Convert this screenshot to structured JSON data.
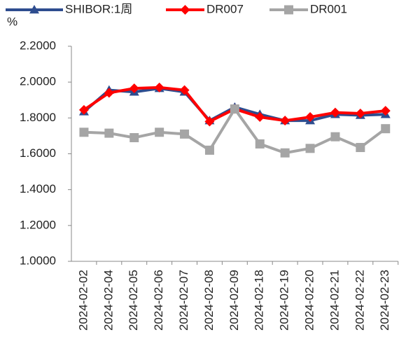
{
  "chart_data": {
    "type": "line",
    "y_label": "%",
    "categories": [
      "2024-02-02",
      "2024-02-04",
      "2024-02-05",
      "2024-02-06",
      "2024-02-07",
      "2024-02-08",
      "2024-02-09",
      "2024-02-18",
      "2024-02-19",
      "2024-02-20",
      "2024-02-21",
      "2024-02-22",
      "2024-02-23"
    ],
    "series": [
      {
        "name": "SHIBOR:1周",
        "color": "#2e4d8f",
        "marker": "triangle",
        "values": [
          1.835,
          1.955,
          1.945,
          1.965,
          1.945,
          1.785,
          1.86,
          1.82,
          1.785,
          1.785,
          1.82,
          1.815,
          1.82
        ]
      },
      {
        "name": "DR007",
        "color": "#ff0000",
        "marker": "diamond",
        "values": [
          1.845,
          1.94,
          1.965,
          1.97,
          1.955,
          1.78,
          1.85,
          1.805,
          1.785,
          1.805,
          1.83,
          1.825,
          1.84
        ]
      },
      {
        "name": "DR001",
        "color": "#a5a5a5",
        "marker": "square",
        "values": [
          1.72,
          1.715,
          1.69,
          1.72,
          1.71,
          1.62,
          1.85,
          1.655,
          1.605,
          1.63,
          1.695,
          1.635,
          1.74
        ]
      }
    ],
    "ylim": [
      1.0,
      2.2
    ],
    "yticks": [
      {
        "value": 1.0,
        "label": "1.0000"
      },
      {
        "value": 1.2,
        "label": "1.2000"
      },
      {
        "value": 1.4,
        "label": "1.4000"
      },
      {
        "value": 1.6,
        "label": "1.6000"
      },
      {
        "value": 1.8,
        "label": "1.8000"
      },
      {
        "value": 2.0,
        "label": "2.0000"
      },
      {
        "value": 2.2,
        "label": "2.2000"
      }
    ],
    "legend": "top"
  }
}
